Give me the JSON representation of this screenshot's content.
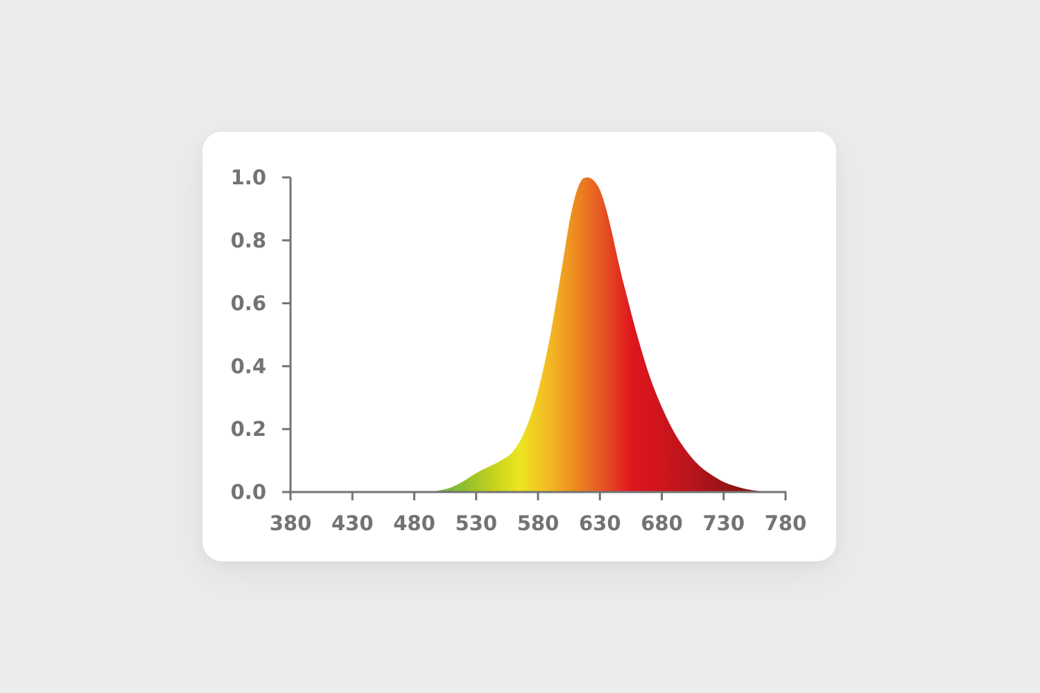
{
  "chart_data": {
    "type": "area",
    "title": "",
    "xlabel": "",
    "ylabel": "",
    "xlim": [
      380,
      780
    ],
    "ylim": [
      0,
      1
    ],
    "x_ticks": [
      380,
      430,
      480,
      530,
      580,
      630,
      680,
      730,
      780
    ],
    "y_ticks": [
      0.0,
      0.2,
      0.4,
      0.6,
      0.8,
      1.0
    ],
    "x_tick_labels": [
      "380",
      "430",
      "480",
      "530",
      "580",
      "630",
      "680",
      "730",
      "780"
    ],
    "y_tick_labels": [
      "0.0",
      "0.2",
      "0.4",
      "0.6",
      "0.8",
      "1.0"
    ],
    "grid": false,
    "legend": "none",
    "series": [
      {
        "x": [
          480,
          490,
          500,
          510,
          520,
          530,
          540,
          550,
          560,
          570,
          580,
          590,
          600,
          605,
          610,
          615,
          620,
          625,
          630,
          635,
          640,
          645,
          650,
          660,
          670,
          680,
          690,
          700,
          710,
          720,
          730,
          740,
          750,
          760,
          770,
          780
        ],
        "y": [
          0.0,
          0.0,
          0.005,
          0.015,
          0.035,
          0.06,
          0.08,
          0.1,
          0.13,
          0.2,
          0.32,
          0.5,
          0.73,
          0.85,
          0.94,
          0.99,
          1.0,
          0.99,
          0.96,
          0.9,
          0.82,
          0.73,
          0.65,
          0.5,
          0.37,
          0.27,
          0.19,
          0.13,
          0.085,
          0.055,
          0.032,
          0.018,
          0.008,
          0.003,
          0.0,
          0.0
        ]
      }
    ],
    "gradient_stops": [
      {
        "wavelength": 490,
        "color": "#5aaa4f"
      },
      {
        "wavelength": 520,
        "color": "#8fbe2c"
      },
      {
        "wavelength": 545,
        "color": "#c8d31c"
      },
      {
        "wavelength": 565,
        "color": "#ece523"
      },
      {
        "wavelength": 590,
        "color": "#f3b723"
      },
      {
        "wavelength": 610,
        "color": "#ec8a20"
      },
      {
        "wavelength": 630,
        "color": "#e65a24"
      },
      {
        "wavelength": 655,
        "color": "#e0161e"
      },
      {
        "wavelength": 700,
        "color": "#bd141c"
      },
      {
        "wavelength": 740,
        "color": "#8c1515"
      },
      {
        "wavelength": 775,
        "color": "#9a1f1b"
      }
    ],
    "axis_color": "#737373"
  }
}
